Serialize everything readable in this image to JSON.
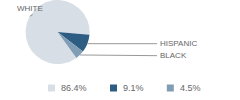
{
  "chart_data": {
    "type": "pie",
    "categories": [
      "WHITE",
      "HISPANIC",
      "BLACK"
    ],
    "values": [
      86.4,
      9.1,
      4.5
    ],
    "value_labels": [
      "86.4%",
      "9.1%",
      "4.5%"
    ],
    "colors": [
      "#d8dee6",
      "#2d5d82",
      "#809db6"
    ],
    "legend": "bottom"
  }
}
